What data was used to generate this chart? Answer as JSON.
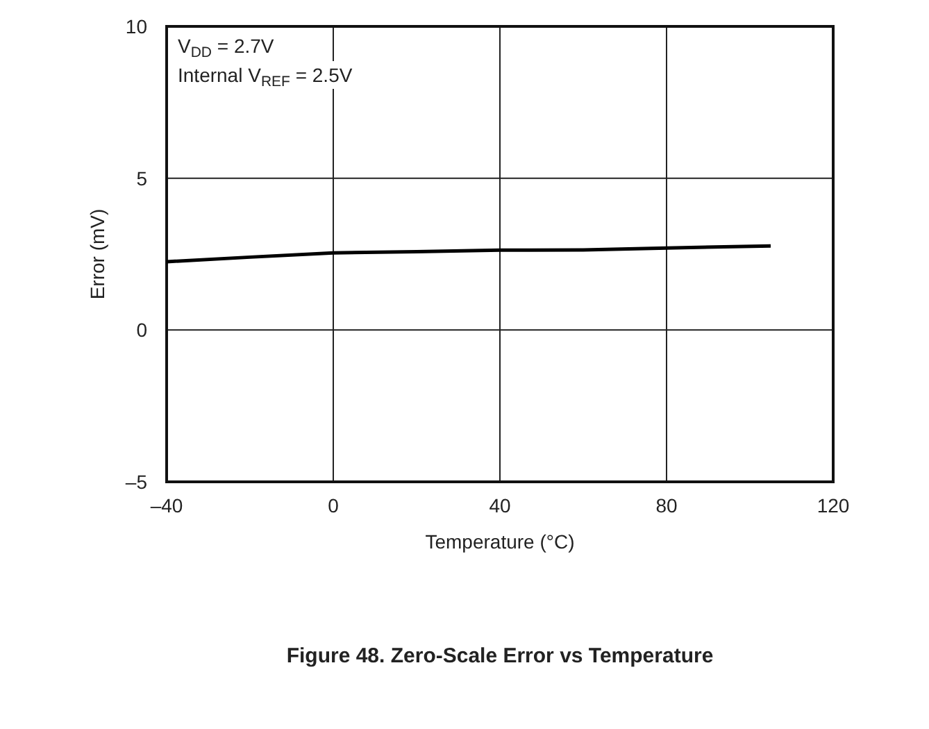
{
  "chart_data": {
    "type": "line",
    "title": "Figure 48. Zero-Scale Error vs Temperature",
    "xlabel": "Temperature (°C)",
    "ylabel": "Error (mV)",
    "annotations": [
      "V$_{DD}$ = 2.7V",
      "Internal V$_{REF}$ = 2.5V"
    ],
    "x": [
      -40,
      -20,
      0,
      20,
      40,
      60,
      80,
      105
    ],
    "series": [
      {
        "color": "#000000",
        "values": [
          2.25,
          2.4,
          2.54,
          2.58,
          2.63,
          2.64,
          2.7,
          2.77
        ]
      }
    ],
    "xlim": [
      -40,
      120
    ],
    "xticks": [
      {
        "value": -40,
        "label": "–40"
      },
      0,
      40,
      80,
      120
    ],
    "ylim": [
      -5,
      10
    ],
    "yticks": [
      {
        "value": -5,
        "label": "–5"
      },
      0,
      5,
      10
    ],
    "grid": true,
    "marker": "none",
    "line_style": "solid"
  }
}
